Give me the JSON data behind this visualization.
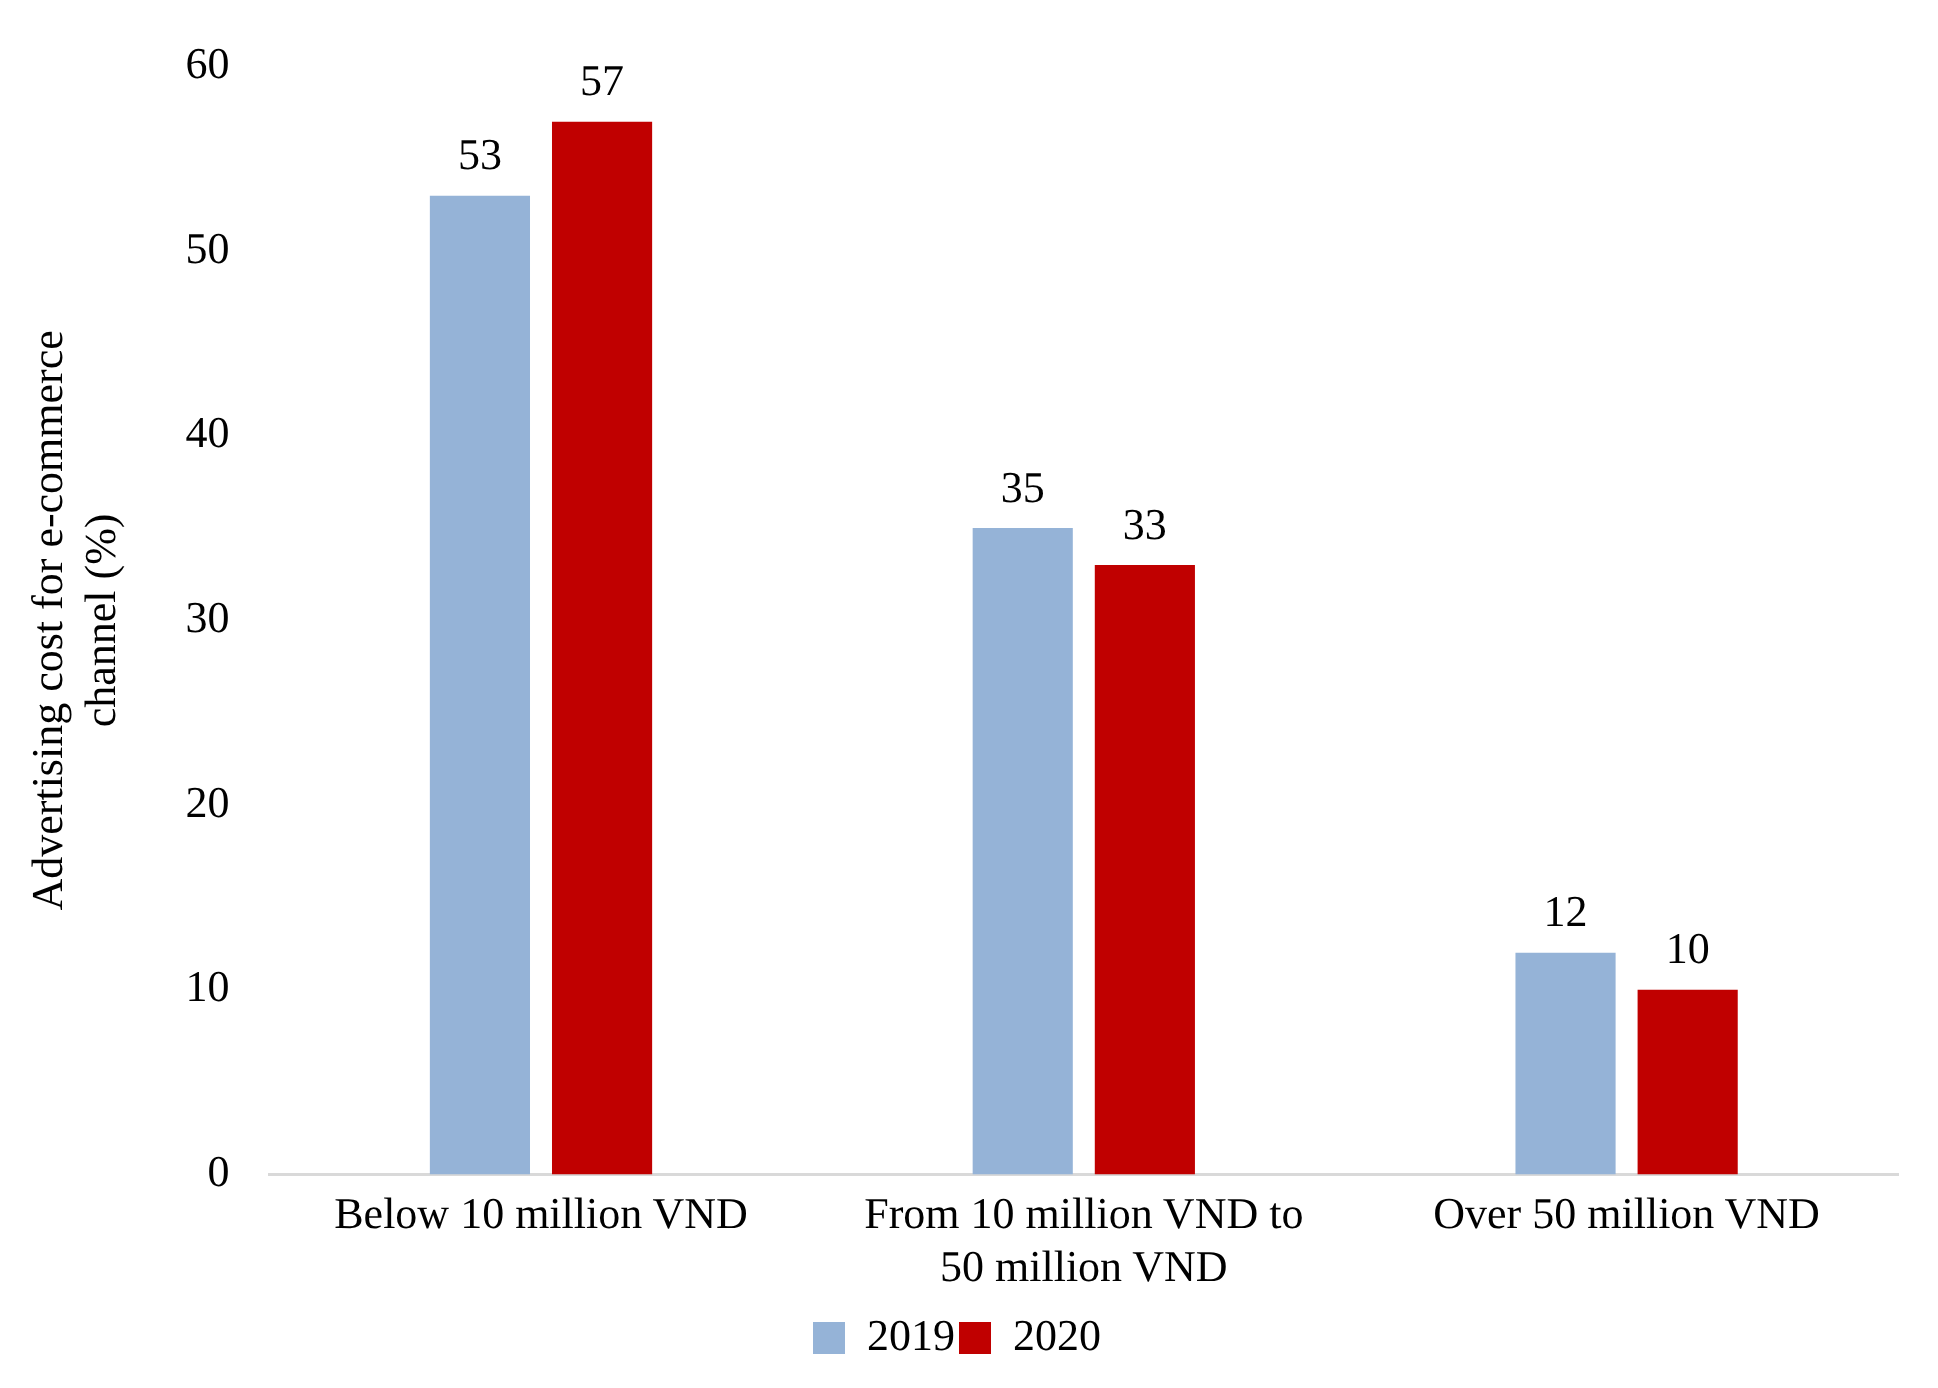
{
  "chart_data": {
    "type": "bar",
    "ylabel": "Advertising cost for e-commerce channel (%)",
    "categories": [
      "Below 10 million VND",
      "From 10 million VND to 50 million VND",
      "Over 50 million VND"
    ],
    "series": [
      {
        "name": "2019",
        "color": "#95b3d7",
        "values": [
          53,
          35,
          12
        ]
      },
      {
        "name": "2020",
        "color": "#c00000",
        "values": [
          57,
          33,
          10
        ]
      }
    ],
    "ylim": [
      0,
      60
    ],
    "yticks": [
      0,
      10,
      20,
      30,
      40,
      50,
      60
    ],
    "grid": false,
    "legend": "bottom",
    "data_labels": true
  }
}
